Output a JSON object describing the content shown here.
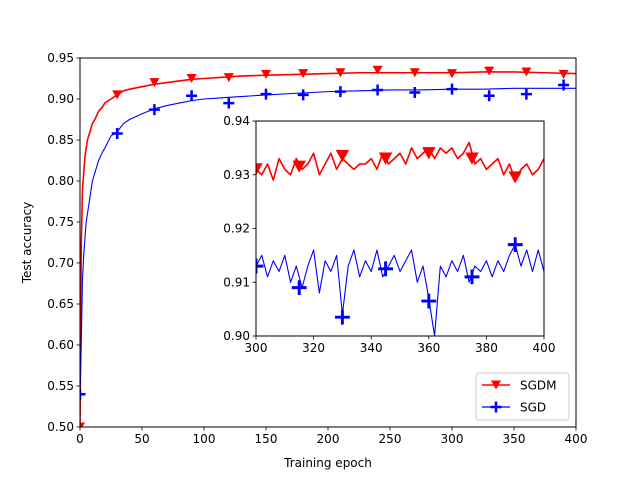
{
  "colors": {
    "sgdm": "#ff0000",
    "sgd": "#0000ff"
  },
  "chart_data": [
    {
      "name": "main",
      "type": "line",
      "xlabel": "Training epoch",
      "ylabel": "Test accuracy",
      "xlim": [
        0,
        400
      ],
      "ylim": [
        0.5,
        0.95
      ],
      "xticks": [
        0,
        50,
        100,
        150,
        200,
        250,
        300,
        350,
        400
      ],
      "yticks": [
        0.5,
        0.55,
        0.6,
        0.65,
        0.7,
        0.75,
        0.8,
        0.85,
        0.9,
        0.95
      ],
      "x_tick_labels": [
        "0",
        "50",
        "100",
        "150",
        "200",
        "250",
        "300",
        "350",
        "400"
      ],
      "y_tick_labels": [
        "0.50",
        "0.55",
        "0.60",
        "0.65",
        "0.70",
        "0.75",
        "0.80",
        "0.85",
        "0.90",
        "0.95"
      ],
      "legend": {
        "placement": "lower-right",
        "entries": [
          "SGDM",
          "SGD"
        ]
      },
      "series": [
        {
          "name": "SGDM",
          "color": "#ff0000",
          "marker": "triangle-down",
          "x": [
            0,
            1,
            2,
            3,
            4,
            5,
            6,
            8,
            10,
            12,
            15,
            18,
            20,
            25,
            30,
            35,
            40,
            50,
            60,
            70,
            80,
            90,
            100,
            110,
            120,
            130,
            150,
            175,
            200,
            225,
            250,
            275,
            300,
            325,
            350,
            375,
            400
          ],
          "values": [
            0.5,
            0.72,
            0.79,
            0.81,
            0.83,
            0.84,
            0.85,
            0.86,
            0.87,
            0.875,
            0.885,
            0.89,
            0.895,
            0.9,
            0.905,
            0.91,
            0.912,
            0.915,
            0.918,
            0.92,
            0.922,
            0.924,
            0.925,
            0.926,
            0.927,
            0.928,
            0.929,
            0.93,
            0.931,
            0.932,
            0.932,
            0.932,
            0.932,
            0.933,
            0.933,
            0.932,
            0.931
          ],
          "marker_x": [
            0,
            30,
            60,
            90,
            120,
            150,
            180,
            210,
            240,
            270,
            300,
            330,
            360,
            390
          ],
          "marker_values": [
            0.5,
            0.905,
            0.92,
            0.925,
            0.926,
            0.93,
            0.931,
            0.932,
            0.935,
            0.932,
            0.931,
            0.934,
            0.933,
            0.93
          ]
        },
        {
          "name": "SGD",
          "color": "#0000ff",
          "marker": "plus",
          "x": [
            0,
            1,
            2,
            3,
            4,
            5,
            6,
            8,
            10,
            12,
            15,
            18,
            20,
            25,
            30,
            35,
            40,
            50,
            60,
            70,
            80,
            90,
            100,
            110,
            120,
            130,
            150,
            175,
            200,
            225,
            250,
            275,
            300,
            325,
            350,
            375,
            400
          ],
          "values": [
            0.54,
            0.6,
            0.68,
            0.71,
            0.73,
            0.75,
            0.76,
            0.78,
            0.8,
            0.81,
            0.825,
            0.835,
            0.84,
            0.855,
            0.86,
            0.87,
            0.875,
            0.882,
            0.888,
            0.892,
            0.895,
            0.898,
            0.9,
            0.901,
            0.902,
            0.903,
            0.905,
            0.907,
            0.909,
            0.91,
            0.911,
            0.911,
            0.912,
            0.912,
            0.913,
            0.913,
            0.913
          ],
          "marker_x": [
            0,
            30,
            60,
            90,
            120,
            150,
            180,
            210,
            240,
            270,
            300,
            330,
            360,
            390
          ],
          "marker_values": [
            0.54,
            0.858,
            0.887,
            0.904,
            0.895,
            0.906,
            0.905,
            0.909,
            0.911,
            0.908,
            0.912,
            0.904,
            0.906,
            0.917
          ]
        }
      ]
    },
    {
      "name": "inset",
      "type": "line",
      "xlim": [
        300,
        400
      ],
      "ylim": [
        0.9,
        0.94
      ],
      "xticks": [
        300,
        320,
        340,
        360,
        380,
        400
      ],
      "yticks": [
        0.9,
        0.91,
        0.92,
        0.93,
        0.94
      ],
      "x_tick_labels": [
        "300",
        "320",
        "340",
        "360",
        "380",
        "400"
      ],
      "y_tick_labels": [
        "0.90",
        "0.91",
        "0.92",
        "0.93",
        "0.94"
      ],
      "series": [
        {
          "name": "SGDM",
          "color": "#ff0000",
          "marker": "triangle-down",
          "x": [
            300,
            302,
            304,
            306,
            308,
            310,
            312,
            314,
            316,
            318,
            320,
            322,
            324,
            326,
            328,
            330,
            332,
            334,
            336,
            338,
            340,
            342,
            344,
            346,
            348,
            350,
            352,
            354,
            356,
            358,
            360,
            362,
            364,
            366,
            368,
            370,
            372,
            374,
            376,
            378,
            380,
            382,
            384,
            386,
            388,
            390,
            392,
            394,
            396,
            398,
            400
          ],
          "values": [
            0.931,
            0.93,
            0.932,
            0.929,
            0.933,
            0.931,
            0.93,
            0.933,
            0.931,
            0.932,
            0.934,
            0.93,
            0.932,
            0.934,
            0.931,
            0.933,
            0.932,
            0.931,
            0.932,
            0.932,
            0.933,
            0.931,
            0.934,
            0.932,
            0.933,
            0.934,
            0.932,
            0.935,
            0.933,
            0.934,
            0.935,
            0.933,
            0.935,
            0.934,
            0.935,
            0.933,
            0.934,
            0.936,
            0.932,
            0.933,
            0.931,
            0.932,
            0.933,
            0.93,
            0.932,
            0.929,
            0.931,
            0.932,
            0.93,
            0.931,
            0.933
          ],
          "marker_x": [
            300,
            315,
            330,
            345,
            360,
            375,
            390
          ],
          "marker_values": [
            0.931,
            0.9315,
            0.9335,
            0.933,
            0.934,
            0.933,
            0.9295
          ]
        },
        {
          "name": "SGD",
          "color": "#0000ff",
          "marker": "plus",
          "x": [
            300,
            302,
            304,
            306,
            308,
            310,
            312,
            314,
            316,
            318,
            320,
            322,
            324,
            326,
            328,
            330,
            332,
            334,
            336,
            338,
            340,
            342,
            344,
            346,
            348,
            350,
            352,
            354,
            356,
            358,
            360,
            362,
            364,
            366,
            368,
            370,
            372,
            374,
            376,
            378,
            380,
            382,
            384,
            386,
            388,
            390,
            392,
            394,
            396,
            398,
            400
          ],
          "values": [
            0.913,
            0.915,
            0.911,
            0.914,
            0.912,
            0.915,
            0.91,
            0.913,
            0.909,
            0.913,
            0.916,
            0.908,
            0.914,
            0.912,
            0.915,
            0.904,
            0.913,
            0.916,
            0.911,
            0.914,
            0.912,
            0.916,
            0.911,
            0.913,
            0.915,
            0.912,
            0.914,
            0.916,
            0.91,
            0.913,
            0.907,
            0.9,
            0.913,
            0.911,
            0.914,
            0.912,
            0.915,
            0.91,
            0.913,
            0.912,
            0.914,
            0.911,
            0.914,
            0.912,
            0.915,
            0.917,
            0.913,
            0.916,
            0.912,
            0.916,
            0.912
          ],
          "marker_x": [
            300,
            315,
            330,
            345,
            360,
            375,
            390
          ],
          "marker_values": [
            0.913,
            0.909,
            0.9035,
            0.9125,
            0.9065,
            0.911,
            0.917
          ]
        }
      ]
    }
  ]
}
